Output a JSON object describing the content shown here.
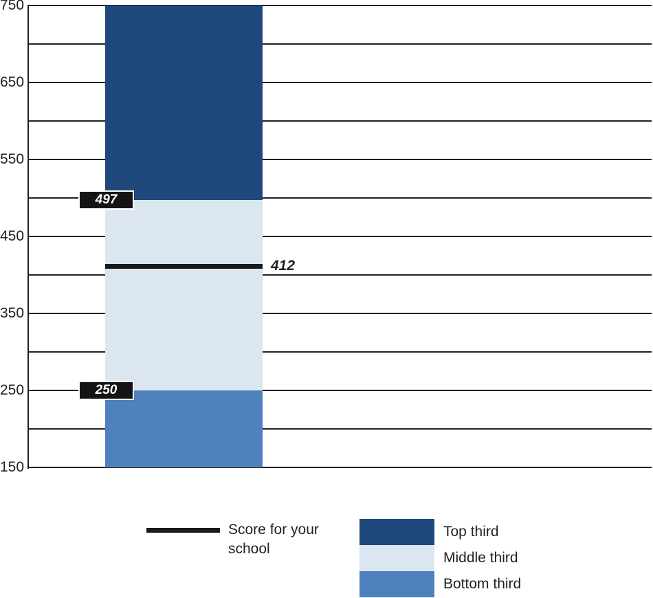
{
  "chart_data": {
    "type": "bar",
    "title": "",
    "ylim": [
      150,
      750
    ],
    "gridline_step": 50,
    "y_tick_values": [
      750,
      650,
      550,
      450,
      350,
      250,
      150
    ],
    "y_tick_labels": [
      "750",
      "650",
      "550",
      "450",
      "350",
      "250",
      "150"
    ],
    "grid_on": true,
    "segments": [
      {
        "name": "Top third",
        "from": 497,
        "to": 750,
        "color": "#1F497D"
      },
      {
        "name": "Middle third",
        "from": 250,
        "to": 497,
        "color": "#DCE6F1"
      },
      {
        "name": "Bottom third",
        "from": 150,
        "to": 250,
        "color": "#4F81BD"
      }
    ],
    "boundary_callouts": [
      {
        "value": 497,
        "label": "497"
      },
      {
        "value": 250,
        "label": "250"
      }
    ],
    "score_line": {
      "value": 412,
      "label": "412"
    },
    "legend": {
      "position": "bottom",
      "line_label": "Score for your school",
      "items": [
        {
          "label": "Top third",
          "color": "#1F497D"
        },
        {
          "label": "Middle third",
          "color": "#DCE6F1"
        },
        {
          "label": "Bottom third",
          "color": "#4F81BD"
        }
      ]
    },
    "colors": {
      "grid": "#231F20",
      "axis": "#231F20",
      "text": "#231F20",
      "score_line": "#1A1A1A",
      "callout_bg": "#141414",
      "callout_text": "#FFFFFF"
    }
  }
}
